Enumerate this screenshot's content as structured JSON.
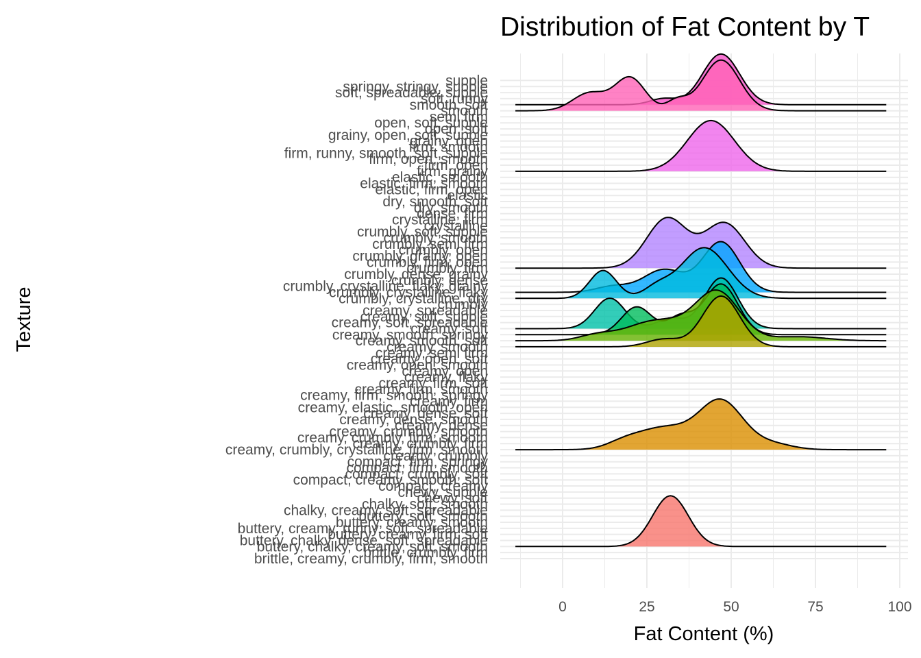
{
  "chart_data": {
    "type": "ridgeline",
    "title": "Distribution of Fat Content by T",
    "xlabel": "Fat Content (%)",
    "ylabel": "Texture",
    "xlim": [
      -14,
      96
    ],
    "x_ticks": [
      0,
      25,
      50,
      75,
      100
    ],
    "grid": true,
    "legend": "none",
    "categories": [
      "brittle, creamy, crumbly, firm, smooth",
      "brittle, crumbly, firm",
      "buttery, chalky, creamy, soft, smooth",
      "buttery, chalky, dense, soft, spreadable",
      "buttery, creamy, firm, soft",
      "buttery, creamy, runny, soft, spreadable",
      "buttery, creamy, smooth",
      "buttery, soft, smooth",
      "chalky, creamy, soft, spreadable",
      "chalky, soft, smooth",
      "chewy, soft",
      "chewy, supple",
      "compact, creamy",
      "compact, creamy, smooth, soft",
      "compact, crumbly, soft",
      "compact, firm, smooth",
      "compact, firm, springy",
      "creamy, crumbly",
      "creamy, crumbly, crystalline, firm, smooth",
      "creamy, crumbly, firm",
      "creamy, crumbly, firm, smooth",
      "creamy, crumbly, smooth",
      "creamy, dense",
      "creamy, dense, smooth",
      "creamy, dense, soft",
      "creamy, elastic, smooth, open",
      "creamy, firm",
      "creamy, firm, smooth, springy",
      "creamy, firm, smooth",
      "creamy, firm, soft",
      "creamy, flaky",
      "creamy, open",
      "creamy, open, smooth",
      "creamy, open, soft",
      "creamy, semi firm",
      "creamy, smooth",
      "creamy, smooth, soft",
      "creamy, smooth, springy",
      "creamy, soft",
      "creamy, soft, spreadable",
      "creamy, soft, supple",
      "creamy, spreadable",
      "crumbly",
      "crumbly, crystalline, dry",
      "crumbly, crystalline, flaky",
      "crumbly, crystalline, flaky, grainy",
      "crumbly, dense",
      "crumbly, dense, grainy",
      "crumbly, firm",
      "crumbly, firm, open",
      "crumbly, grainy, open",
      "crumbly, open",
      "crumbly, semi firm",
      "crumbly, smooth",
      "crumbly, soft, supple",
      "crystalline",
      "crystalline, firm",
      "dense, firm",
      "dry, smooth",
      "dry, smooth, soft",
      "elastic",
      "elastic, firm, open",
      "elastic, firm, smooth",
      "elastic, smooth",
      "firm, grainy",
      "firm, open",
      "firm, open, smooth",
      "firm, runny, smooth, soft, supple",
      "firm, smooth",
      "grainy, open",
      "grainy, open, soft, supple",
      "open, soft",
      "open, soft, supple",
      "semi firm",
      "smooth",
      "smooth, soft",
      "soft, runny",
      "soft, spreadable, supple",
      "springy, stringy, supple",
      "supple"
    ],
    "series": [
      {
        "category_index": 2,
        "color": "#F8766D",
        "peaks": [
          [
            32,
            5.3,
            1.0
          ]
        ]
      },
      {
        "category_index": 18,
        "color": "#DB8E00",
        "peaks": [
          [
            47,
            6.5,
            1.0
          ],
          [
            30,
            8,
            0.45
          ],
          [
            18,
            5,
            0.12
          ],
          [
            62,
            6,
            0.12
          ]
        ]
      },
      {
        "category_index": 35,
        "color": "#AEA200",
        "peaks": [
          [
            47,
            5.5,
            1.0
          ],
          [
            30,
            5,
            0.15
          ]
        ]
      },
      {
        "category_index": 36,
        "color": "#64B200",
        "peaks": [
          [
            46,
            6.5,
            0.95
          ],
          [
            28,
            9,
            0.4
          ],
          [
            10,
            5,
            0.1
          ],
          [
            70,
            8,
            0.08
          ]
        ]
      },
      {
        "category_index": 37,
        "color": "#00BD5C",
        "peaks": [
          [
            22,
            4.5,
            0.55
          ],
          [
            47,
            5,
            1.0
          ],
          [
            35,
            4,
            0.35
          ]
        ]
      },
      {
        "category_index": 38,
        "color": "#00C1A7",
        "peaks": [
          [
            14,
            4.5,
            0.6
          ],
          [
            47,
            5,
            1.0
          ],
          [
            32,
            4,
            0.2
          ]
        ]
      },
      {
        "category_index": 43,
        "color": "#00BADE",
        "peaks": [
          [
            12,
            4,
            0.55
          ],
          [
            42,
            7,
            1.0
          ],
          [
            28,
            4,
            0.2
          ]
        ]
      },
      {
        "category_index": 44,
        "color": "#00A6FF",
        "peaks": [
          [
            47,
            5.5,
            1.0
          ],
          [
            30,
            6,
            0.45
          ],
          [
            15,
            5,
            0.12
          ]
        ]
      },
      {
        "category_index": 48,
        "color": "#B385FF",
        "peaks": [
          [
            31,
            6,
            1.0
          ],
          [
            48,
            6,
            0.9
          ]
        ]
      },
      {
        "category_index": 64,
        "color": "#EF67EB",
        "peaks": [
          [
            44,
            7,
            1.0
          ]
        ]
      },
      {
        "category_index": 74,
        "color": "#FF63B6",
        "peaks": [
          [
            20,
            4.5,
            0.65
          ],
          [
            8,
            5,
            0.35
          ],
          [
            47,
            5.5,
            1.0
          ],
          [
            34,
            3,
            0.2
          ]
        ]
      },
      {
        "category_index": 75,
        "color": "#F552C8",
        "peaks": [
          [
            47,
            5.5,
            1.0
          ],
          [
            30,
            4,
            0.12
          ]
        ]
      }
    ]
  }
}
